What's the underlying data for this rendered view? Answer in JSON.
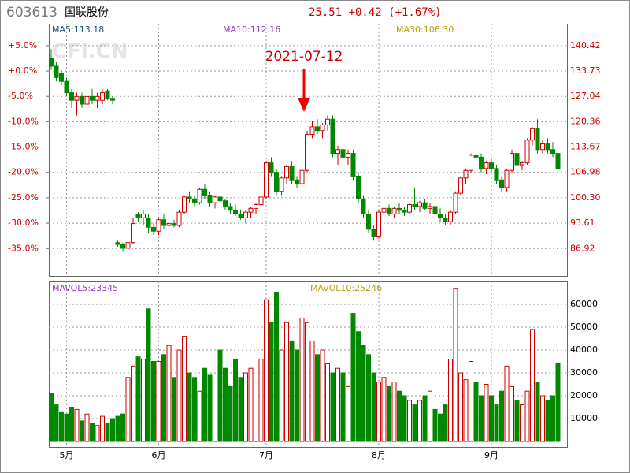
{
  "chart_data": {
    "type": "candlestick",
    "code": "603613",
    "name": "国联股份",
    "quote": "25.51 +0.42 (+1.67%)",
    "watermark": "CFi.CN",
    "annotation": "2021-07-12",
    "ma_labels": {
      "ma5": "MA5:113.18",
      "ma10": "MA10:112.16",
      "ma30": "MA30:106.30"
    },
    "vol_labels": {
      "mavol5": "MAVOL5:23345",
      "mavol10": "MAVOL10:25246"
    },
    "up_color": "#cc0000",
    "down_color": "#008800",
    "grid": true,
    "categories": [
      null,
      null,
      null,
      "5月",
      null,
      null,
      null,
      null,
      null,
      null,
      null,
      null,
      null,
      null,
      null,
      null,
      null,
      null,
      null,
      null,
      null,
      "6月",
      null,
      null,
      null,
      null,
      null,
      null,
      null,
      null,
      null,
      null,
      null,
      null,
      null,
      null,
      null,
      null,
      null,
      null,
      null,
      null,
      "7月",
      null,
      null,
      null,
      null,
      null,
      null,
      null,
      null,
      null,
      null,
      null,
      null,
      null,
      null,
      null,
      null,
      null,
      null,
      null,
      null,
      null,
      "8月",
      null,
      null,
      null,
      null,
      null,
      null,
      null,
      null,
      null,
      null,
      null,
      null,
      null,
      null,
      null,
      null,
      null,
      null,
      null,
      null,
      null,
      "9月",
      null,
      null,
      null,
      null,
      null,
      null,
      null,
      null,
      null,
      null,
      null,
      null,
      null
    ],
    "ohlc": [
      [
        137,
        139.5,
        134,
        135
      ],
      [
        135,
        136,
        131,
        132
      ],
      [
        133,
        134,
        130,
        131
      ],
      [
        131,
        132,
        127,
        128
      ],
      [
        128,
        129,
        124,
        126
      ],
      [
        126,
        128,
        122,
        127
      ],
      [
        127,
        128,
        124,
        125
      ],
      [
        125,
        128,
        124,
        127
      ],
      [
        127,
        129,
        125,
        126
      ],
      [
        126,
        128,
        124,
        127
      ],
      [
        126,
        129,
        125,
        128
      ],
      [
        128.5,
        129,
        126,
        126.5
      ],
      [
        126.5,
        127,
        125,
        126
      ],
      [
        88.5,
        89,
        87.5,
        88
      ],
      [
        88,
        88.5,
        86,
        87
      ],
      [
        87,
        89,
        85.5,
        88.5
      ],
      [
        88.5,
        95,
        88,
        93.5
      ],
      [
        96,
        96.5,
        94,
        95
      ],
      [
        95,
        97,
        93,
        96
      ],
      [
        95,
        96,
        91,
        92.5
      ],
      [
        92.5,
        93.5,
        90.5,
        91.5
      ],
      [
        91.5,
        95,
        90.5,
        94.5
      ],
      [
        94.5,
        96,
        92,
        93
      ],
      [
        93,
        94,
        92,
        93.5
      ],
      [
        93.5,
        94.5,
        92.5,
        93
      ],
      [
        93,
        97,
        92.5,
        96.5
      ],
      [
        96.5,
        101,
        96,
        100.5
      ],
      [
        100.5,
        102,
        99,
        100
      ],
      [
        100,
        101,
        98,
        99
      ],
      [
        99,
        103,
        98.5,
        102.5
      ],
      [
        102.5,
        104,
        100,
        101
      ],
      [
        101,
        102,
        98,
        99
      ],
      [
        99,
        101,
        97.5,
        100.5
      ],
      [
        100.5,
        102,
        99,
        99.5
      ],
      [
        99.5,
        100,
        97,
        98
      ],
      [
        98,
        99,
        96,
        97
      ],
      [
        97,
        98.5,
        95.5,
        96
      ],
      [
        96,
        97,
        94.5,
        95
      ],
      [
        95,
        97,
        93.5,
        96.5
      ],
      [
        96.5,
        98,
        95,
        97.5
      ],
      [
        97.5,
        99,
        96,
        98.5
      ],
      [
        98.5,
        101,
        97.5,
        100.5
      ],
      [
        100.5,
        110,
        100,
        109.5
      ],
      [
        109.5,
        111,
        106,
        107
      ],
      [
        107,
        108,
        101,
        102
      ],
      [
        102,
        106,
        101,
        105.5
      ],
      [
        105.5,
        109,
        104,
        108.5
      ],
      [
        108.5,
        110,
        104,
        105
      ],
      [
        105,
        106,
        103,
        104
      ],
      [
        104,
        108,
        103,
        107.5
      ],
      [
        107.5,
        118,
        107,
        117
      ],
      [
        117,
        120.5,
        116,
        119
      ],
      [
        119,
        121,
        117,
        118
      ],
      [
        118,
        120,
        116,
        119.5
      ],
      [
        119.5,
        122,
        118,
        121
      ],
      [
        121,
        122,
        111,
        112
      ],
      [
        112,
        114,
        109,
        113
      ],
      [
        113,
        114,
        110,
        111
      ],
      [
        111,
        113,
        109,
        112
      ],
      [
        112,
        113,
        105,
        106
      ],
      [
        106,
        107,
        99,
        100
      ],
      [
        100,
        101,
        95,
        96
      ],
      [
        96,
        97,
        91,
        92
      ],
      [
        92,
        93,
        89,
        90
      ],
      [
        90,
        97,
        89.5,
        96.5
      ],
      [
        96.5,
        98,
        95,
        97.5
      ],
      [
        97.5,
        98.5,
        95.5,
        96
      ],
      [
        96,
        98,
        95,
        97.5
      ],
      [
        97.5,
        99,
        96,
        97
      ],
      [
        97,
        98,
        95.5,
        96.5
      ],
      [
        96.5,
        99,
        96,
        98.5
      ],
      [
        98.5,
        103,
        97,
        98
      ],
      [
        98,
        99.5,
        96.5,
        99
      ],
      [
        99,
        100,
        97,
        97.5
      ],
      [
        97.5,
        99,
        96,
        98
      ],
      [
        98,
        98.5,
        95.5,
        96
      ],
      [
        96,
        97.5,
        94,
        95
      ],
      [
        95,
        96,
        93,
        94
      ],
      [
        94,
        97,
        93,
        96.5
      ],
      [
        96.5,
        102,
        96,
        101.5
      ],
      [
        101.5,
        106,
        101,
        105.5
      ],
      [
        105.5,
        108,
        104,
        107.5
      ],
      [
        107.5,
        112,
        107,
        111.5
      ],
      [
        111.5,
        114,
        110,
        111
      ],
      [
        111,
        112,
        107,
        108
      ],
      [
        108,
        110,
        106.5,
        109.5
      ],
      [
        109.5,
        110.5,
        107,
        108
      ],
      [
        108,
        109,
        104,
        105
      ],
      [
        105,
        106,
        102,
        103
      ],
      [
        103,
        108,
        102,
        107.5
      ],
      [
        107.5,
        113,
        107,
        112
      ],
      [
        112,
        113,
        108,
        109
      ],
      [
        109,
        110,
        107.5,
        109.5
      ],
      [
        109.5,
        116,
        109,
        115.5
      ],
      [
        115.5,
        119,
        114,
        118.5
      ],
      [
        118.5,
        121,
        112,
        113
      ],
      [
        113,
        115.5,
        112,
        114.5
      ],
      [
        114.5,
        116,
        112,
        113
      ],
      [
        113,
        115,
        111,
        112
      ],
      [
        112,
        113,
        107,
        108
      ]
    ],
    "volume": [
      21000,
      16000,
      13000,
      12000,
      15000,
      14000,
      9000,
      12000,
      8000,
      7000,
      11000,
      8000,
      10000,
      11000,
      12000,
      28000,
      33000,
      37000,
      36000,
      58000,
      35000,
      35000,
      38000,
      42000,
      28000,
      40000,
      46000,
      30000,
      28000,
      22000,
      32000,
      29000,
      26000,
      40000,
      32000,
      24000,
      36000,
      28000,
      30000,
      32000,
      26000,
      36000,
      62000,
      52000,
      65000,
      40000,
      52000,
      44000,
      40000,
      54000,
      52000,
      44000,
      38000,
      40000,
      34000,
      30000,
      32000,
      30000,
      24000,
      56000,
      48000,
      42000,
      38000,
      30000,
      26000,
      28000,
      24000,
      26000,
      22000,
      20000,
      18000,
      16000,
      18000,
      20000,
      22000,
      14000,
      12000,
      16000,
      36000,
      67000,
      30000,
      27000,
      35000,
      26000,
      20000,
      25000,
      20000,
      16000,
      22000,
      33000,
      24000,
      18000,
      16000,
      22000,
      49000,
      26000,
      20000,
      18000,
      20000,
      34000
    ],
    "ylim": [
      79.7,
      146.2
    ],
    "yticks": [
      140.42,
      133.73,
      127.04,
      120.36,
      113.67,
      106.98,
      {
        "value": 100.3,
        "label": "100.30"
      },
      93.61,
      86.92
    ],
    "y2lim": [
      -40.4,
      9.33
    ],
    "y2ticks": [
      {
        "value": 5,
        "label": "+5.0%"
      },
      {
        "value": 0,
        "label": "+0.0%"
      },
      {
        "value": -5,
        "label": "-5.0%"
      },
      {
        "value": -10,
        "label": "-10.0%"
      },
      {
        "value": -15,
        "label": "-15.0%"
      },
      {
        "value": -20,
        "label": "-20.0%"
      },
      {
        "value": -25,
        "label": "-25.0%"
      },
      {
        "value": -30,
        "label": "-30.0%"
      },
      {
        "value": -35,
        "label": "-35.0%"
      }
    ],
    "vol_ylim": [
      0,
      70000
    ],
    "vol_yticks": [
      60000,
      50000,
      40000,
      30000,
      20000,
      10000
    ]
  }
}
